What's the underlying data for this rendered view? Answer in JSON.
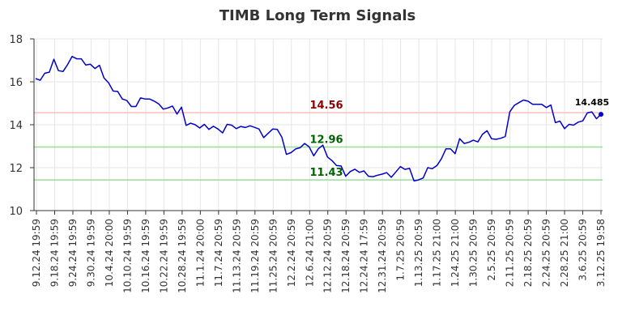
{
  "chart_data": {
    "type": "line",
    "title": "TIMB Long Term Signals",
    "xlabel": "",
    "ylabel": "",
    "ylim": [
      10,
      18
    ],
    "y_ticks": [
      10,
      12,
      14,
      16,
      18
    ],
    "grid": true,
    "x_tick_labels": [
      "9.12.24 19:59",
      "9.18.24 19:59",
      "9.24.24 19:59",
      "9.30.24 19:59",
      "10.4.24 20:00",
      "10.10.24 19:59",
      "10.16.24 19:59",
      "10.22.24 19:59",
      "10.28.24 19:59",
      "11.1.24 20:00",
      "11.7.24 20:59",
      "11.13.24 20:59",
      "11.19.24 20:59",
      "11.25.24 20:59",
      "12.2.24 20:59",
      "12.6.24 21:00",
      "12.12.24 20:59",
      "12.18.24 20:59",
      "12.24.24 17:59",
      "12.31.24 20:59",
      "1.7.25 20:59",
      "1.13.25 20:59",
      "1.17.25 21:00",
      "1.24.25 21:00",
      "1.30.25 20:59",
      "2.5.25 20:59",
      "2.11.25 20:59",
      "2.18.25 20:59",
      "2.24.25 20:59",
      "2.28.25 21:00",
      "3.6.25 20:59",
      "3.12.25 19:58"
    ],
    "series": [
      {
        "color": "#0000cc",
        "values": [
          16.15,
          16.07,
          16.4,
          16.45,
          17.05,
          16.52,
          16.48,
          16.8,
          17.18,
          17.07,
          17.07,
          16.78,
          16.82,
          16.62,
          16.77,
          16.18,
          15.95,
          15.57,
          15.55,
          15.2,
          15.13,
          14.85,
          14.85,
          15.25,
          15.2,
          15.2,
          15.1,
          14.97,
          14.73,
          14.78,
          14.87,
          14.5,
          14.82,
          13.97,
          14.07,
          14.0,
          13.85,
          14.02,
          13.78,
          13.93,
          13.8,
          13.62,
          14.02,
          13.98,
          13.82,
          13.92,
          13.87,
          13.95,
          13.88,
          13.8,
          13.4,
          13.6,
          13.8,
          13.78,
          13.42,
          12.62,
          12.7,
          12.87,
          12.93,
          13.13,
          12.97,
          12.55,
          12.88,
          13.05,
          12.5,
          12.33,
          12.1,
          12.08,
          11.6,
          11.82,
          11.93,
          11.78,
          11.85,
          11.6,
          11.58,
          11.65,
          11.7,
          11.77,
          11.55,
          11.8,
          12.05,
          11.92,
          11.97,
          11.38,
          11.43,
          11.52,
          12.0,
          11.95,
          12.1,
          12.42,
          12.88,
          12.88,
          12.65,
          13.35,
          13.13,
          13.18,
          13.28,
          13.2,
          13.55,
          13.72,
          13.35,
          13.32,
          13.37,
          13.45,
          14.6,
          14.9,
          15.03,
          15.15,
          15.1,
          14.95,
          14.95,
          14.95,
          14.8,
          14.92,
          14.1,
          14.17,
          13.82,
          14.02,
          13.98,
          14.12,
          14.18,
          14.55,
          14.6,
          14.28,
          14.485
        ]
      }
    ],
    "levels": [
      {
        "value": 14.56,
        "label": "14.56",
        "line_color": "#ffbbbb",
        "label_color": "#8b0000"
      },
      {
        "value": 12.96,
        "label": "12.96",
        "line_color": "#99dd99",
        "label_color": "#006400"
      },
      {
        "value": 11.43,
        "label": "11.43",
        "line_color": "#99dd99",
        "label_color": "#006400"
      }
    ],
    "last_value_label": "14.485"
  }
}
